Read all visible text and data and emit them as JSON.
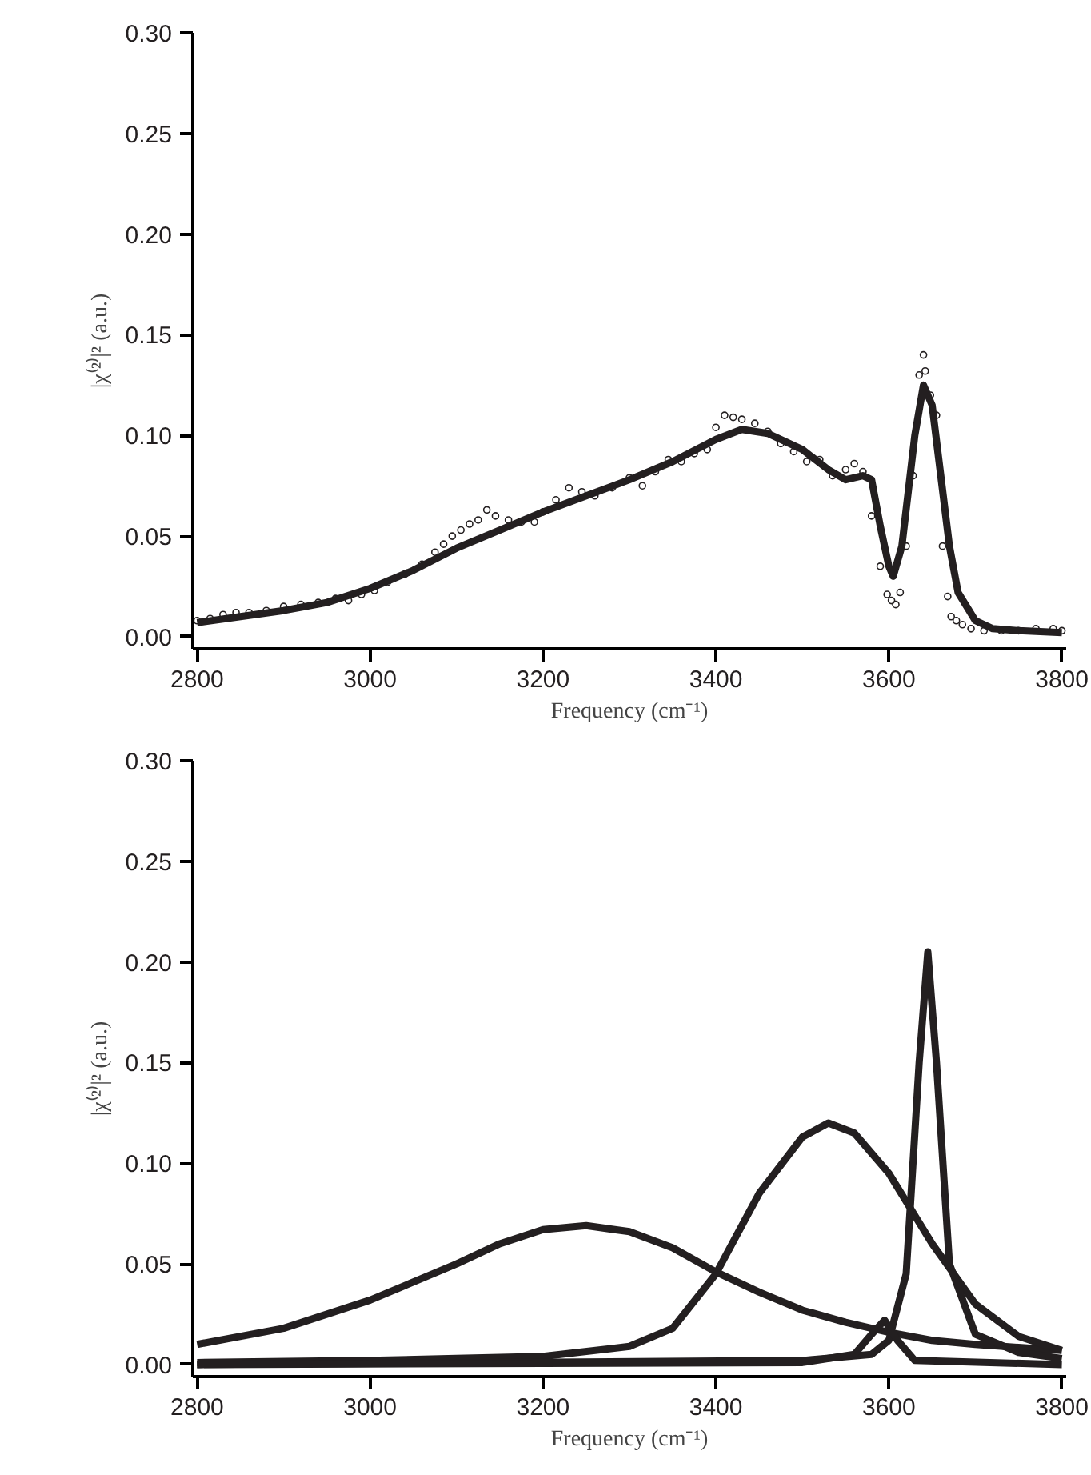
{
  "chart_data": [
    {
      "type": "scatter",
      "xlabel": "Frequency (cm⁻¹)",
      "ylabel": "|χ⁽²⁾|² (a.u.)",
      "xlim": [
        2795,
        3805
      ],
      "ylim": [
        -0.006,
        0.3
      ],
      "xticks": [
        2800,
        3000,
        3200,
        3400,
        3600,
        3800
      ],
      "yticks": [
        {
          "value": 0,
          "label": "0.00"
        },
        0.05,
        {
          "value": 0.1,
          "label": "0.10"
        },
        0.15,
        {
          "value": 0.2,
          "label": "0.20"
        },
        0.25,
        {
          "value": 0.3,
          "label": "0.30"
        }
      ],
      "series": [
        {
          "type": "scatter",
          "marker": "circle",
          "color": "#231f20",
          "x": [
            2800,
            2815,
            2830,
            2845,
            2860,
            2880,
            2900,
            2920,
            2940,
            2960,
            2975,
            2990,
            3005,
            3020,
            3040,
            3060,
            3075,
            3085,
            3095,
            3105,
            3115,
            3125,
            3135,
            3145,
            3160,
            3175,
            3190,
            3200,
            3215,
            3230,
            3245,
            3260,
            3280,
            3300,
            3315,
            3330,
            3345,
            3360,
            3375,
            3390,
            3400,
            3410,
            3420,
            3430,
            3445,
            3460,
            3475,
            3490,
            3505,
            3520,
            3535,
            3550,
            3560,
            3570,
            3580,
            3590,
            3598,
            3603,
            3608,
            3613,
            3620,
            3628,
            3635,
            3640,
            3642,
            3648,
            3655,
            3662,
            3668,
            3672,
            3678,
            3685,
            3695,
            3710,
            3730,
            3750,
            3770,
            3790,
            3800
          ],
          "values": [
            0.008,
            0.009,
            0.011,
            0.012,
            0.012,
            0.013,
            0.015,
            0.016,
            0.017,
            0.019,
            0.018,
            0.021,
            0.023,
            0.027,
            0.031,
            0.036,
            0.042,
            0.046,
            0.05,
            0.053,
            0.056,
            0.058,
            0.063,
            0.06,
            0.058,
            0.057,
            0.057,
            0.062,
            0.068,
            0.074,
            0.072,
            0.07,
            0.074,
            0.079,
            0.075,
            0.082,
            0.088,
            0.087,
            0.091,
            0.093,
            0.104,
            0.11,
            0.109,
            0.108,
            0.106,
            0.102,
            0.096,
            0.092,
            0.087,
            0.088,
            0.08,
            0.083,
            0.086,
            0.082,
            0.06,
            0.035,
            0.021,
            0.018,
            0.016,
            0.022,
            0.045,
            0.08,
            0.13,
            0.14,
            0.132,
            0.12,
            0.11,
            0.045,
            0.02,
            0.01,
            0.008,
            0.006,
            0.004,
            0.003,
            0.003,
            0.003,
            0.004,
            0.004,
            0.003
          ]
        },
        {
          "type": "line",
          "marker": "none",
          "color": "#231f20",
          "x": [
            2800,
            2850,
            2900,
            2950,
            3000,
            3050,
            3100,
            3150,
            3200,
            3250,
            3300,
            3350,
            3400,
            3430,
            3460,
            3500,
            3530,
            3550,
            3570,
            3580,
            3590,
            3600,
            3605,
            3615,
            3630,
            3640,
            3650,
            3660,
            3670,
            3680,
            3700,
            3720,
            3750,
            3800
          ],
          "values": [
            0.007,
            0.01,
            0.013,
            0.017,
            0.024,
            0.033,
            0.044,
            0.053,
            0.062,
            0.07,
            0.078,
            0.087,
            0.098,
            0.103,
            0.101,
            0.093,
            0.083,
            0.078,
            0.08,
            0.078,
            0.055,
            0.035,
            0.03,
            0.045,
            0.1,
            0.125,
            0.115,
            0.08,
            0.045,
            0.022,
            0.008,
            0.004,
            0.003,
            0.002
          ]
        }
      ]
    },
    {
      "type": "line",
      "xlabel": "Frequency (cm⁻¹)",
      "ylabel": "|χ⁽²⁾|² (a.u.)",
      "xlim": [
        2795,
        3805
      ],
      "ylim": [
        -0.006,
        0.3
      ],
      "xticks": [
        2800,
        3000,
        3200,
        3400,
        3600,
        3800
      ],
      "yticks": [
        {
          "value": 0,
          "label": "0.00"
        },
        0.05,
        {
          "value": 0.1,
          "label": "0.10"
        },
        0.15,
        {
          "value": 0.2,
          "label": "0.20"
        },
        0.25,
        {
          "value": 0.3,
          "label": "0.30"
        }
      ],
      "series": [
        {
          "color": "#231f20",
          "x": [
            2800,
            2900,
            3000,
            3100,
            3150,
            3200,
            3250,
            3300,
            3350,
            3400,
            3450,
            3500,
            3550,
            3600,
            3650,
            3700,
            3800
          ],
          "values": [
            0.01,
            0.018,
            0.032,
            0.05,
            0.06,
            0.067,
            0.069,
            0.066,
            0.058,
            0.046,
            0.036,
            0.027,
            0.021,
            0.016,
            0.012,
            0.01,
            0.007
          ]
        },
        {
          "color": "#231f20",
          "x": [
            2800,
            3000,
            3100,
            3200,
            3300,
            3350,
            3400,
            3450,
            3500,
            3530,
            3560,
            3600,
            3650,
            3700,
            3750,
            3800
          ],
          "values": [
            0.001,
            0.002,
            0.003,
            0.004,
            0.009,
            0.018,
            0.045,
            0.085,
            0.113,
            0.12,
            0.115,
            0.095,
            0.06,
            0.03,
            0.014,
            0.007
          ]
        },
        {
          "color": "#231f20",
          "x": [
            2800,
            3500,
            3580,
            3600,
            3620,
            3635,
            3645,
            3655,
            3670,
            3700,
            3750,
            3800
          ],
          "values": [
            0.0,
            0.002,
            0.005,
            0.012,
            0.045,
            0.15,
            0.205,
            0.15,
            0.05,
            0.015,
            0.006,
            0.003
          ]
        },
        {
          "color": "#231f20",
          "x": [
            2800,
            3500,
            3560,
            3580,
            3595,
            3610,
            3630,
            3800
          ],
          "values": [
            0.0,
            0.001,
            0.005,
            0.015,
            0.022,
            0.012,
            0.002,
            0.0
          ]
        }
      ]
    }
  ]
}
